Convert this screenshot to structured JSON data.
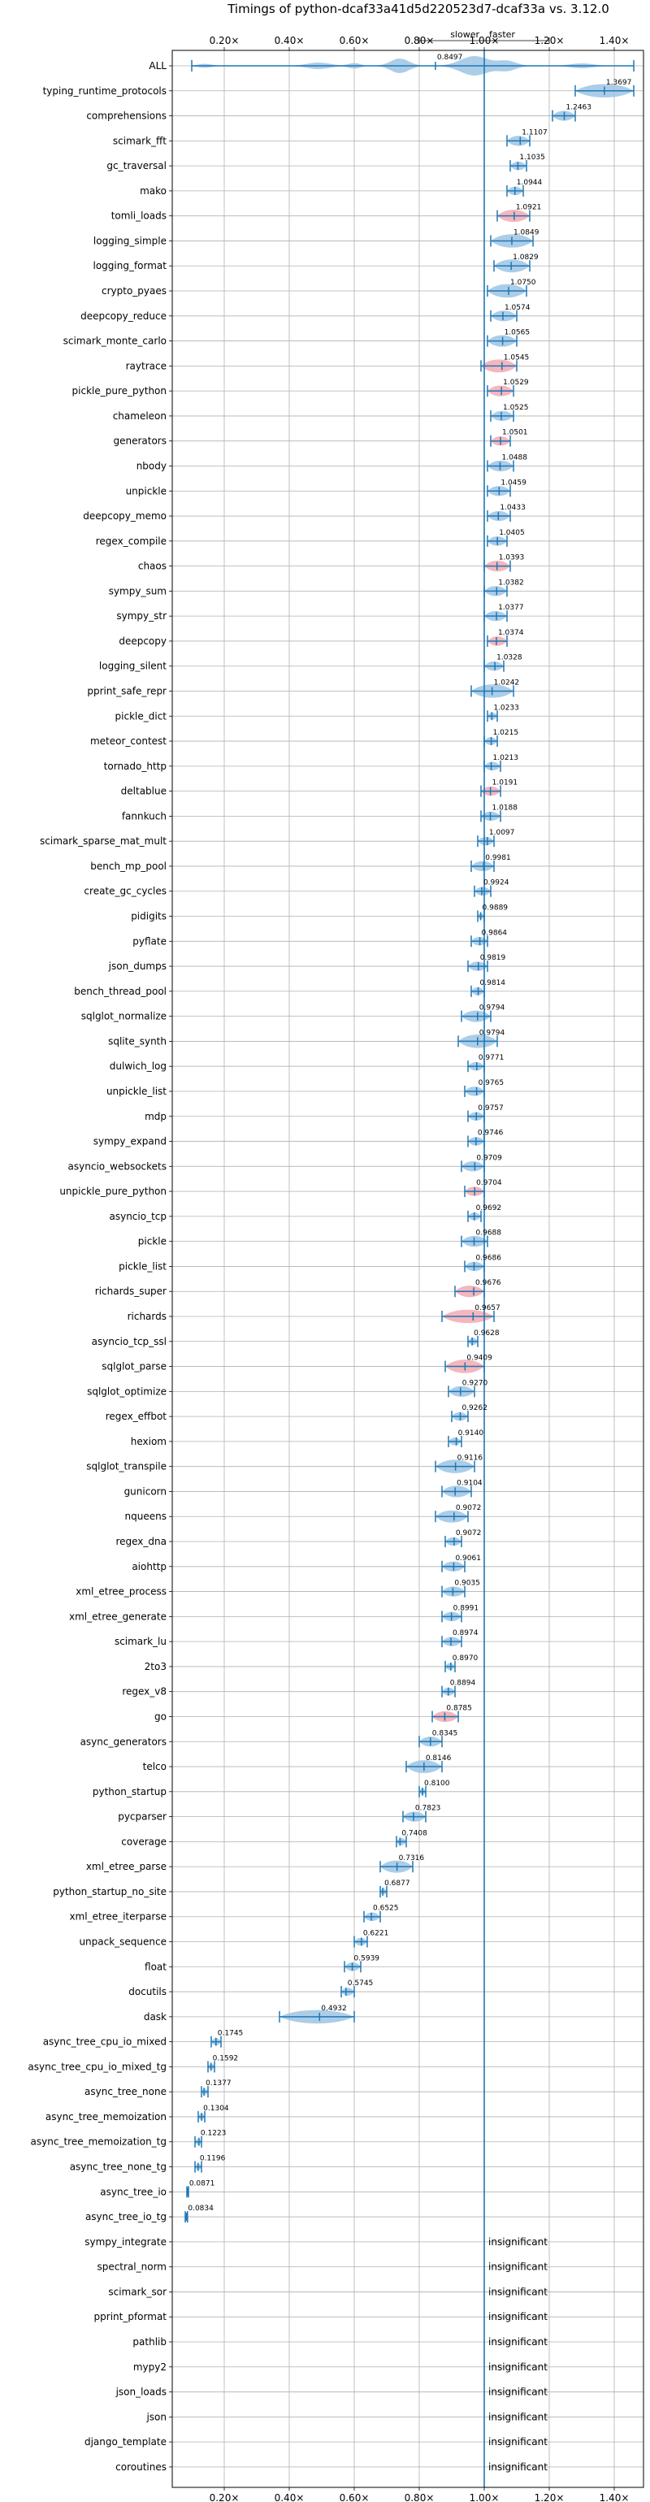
{
  "chart_data": {
    "type": "violin",
    "title": "Timings of python-dcaf33a41d5d220523d7-dcaf33a vs. 3.12.0",
    "slower_label": "slower",
    "faster_label": "faster",
    "x_range": [
      0.04,
      1.49
    ],
    "x_ticks": [
      0.2,
      0.4,
      0.6,
      0.8,
      1.0,
      1.2,
      1.4
    ],
    "x_tick_labels": [
      "0.20×",
      "0.40×",
      "0.60×",
      "0.80×",
      "1.00×",
      "1.20×",
      "1.40×"
    ],
    "reference_line": 1.0,
    "grid": true,
    "colors": {
      "violin_faster": "#9cc4e4",
      "violin_slower": "#f3a9b2",
      "line": "#1f77b4"
    },
    "insignificant_text": "insignificant",
    "benchmarks": [
      {
        "name": "ALL",
        "value": 0.8497,
        "lo": 0.1,
        "hi": 1.46,
        "label": "0.8497"
      },
      {
        "name": "typing_runtime_protocols",
        "value": 1.3697,
        "lo": 1.28,
        "hi": 1.46,
        "label": "1.3697"
      },
      {
        "name": "comprehensions",
        "value": 1.2463,
        "lo": 1.21,
        "hi": 1.28,
        "label": "1.2463"
      },
      {
        "name": "scimark_fft",
        "value": 1.1107,
        "lo": 1.07,
        "hi": 1.14,
        "label": "1.1107"
      },
      {
        "name": "gc_traversal",
        "value": 1.1035,
        "lo": 1.08,
        "hi": 1.13,
        "label": "1.1035"
      },
      {
        "name": "mako",
        "value": 1.0944,
        "lo": 1.07,
        "hi": 1.12,
        "label": "1.0944"
      },
      {
        "name": "tomli_loads",
        "value": 1.0921,
        "lo": 1.04,
        "hi": 1.14,
        "label": "1.0921",
        "slower": true
      },
      {
        "name": "logging_simple",
        "value": 1.0849,
        "lo": 1.02,
        "hi": 1.15,
        "label": "1.0849"
      },
      {
        "name": "logging_format",
        "value": 1.0829,
        "lo": 1.03,
        "hi": 1.14,
        "label": "1.0829"
      },
      {
        "name": "crypto_pyaes",
        "value": 1.075,
        "lo": 1.01,
        "hi": 1.13,
        "label": "1.0750"
      },
      {
        "name": "deepcopy_reduce",
        "value": 1.0574,
        "lo": 1.02,
        "hi": 1.1,
        "label": "1.0574"
      },
      {
        "name": "scimark_monte_carlo",
        "value": 1.0565,
        "lo": 1.01,
        "hi": 1.1,
        "label": "1.0565"
      },
      {
        "name": "raytrace",
        "value": 1.0545,
        "lo": 0.99,
        "hi": 1.1,
        "label": "1.0545",
        "slower": true
      },
      {
        "name": "pickle_pure_python",
        "value": 1.0529,
        "lo": 1.01,
        "hi": 1.09,
        "label": "1.0529",
        "slower": true
      },
      {
        "name": "chameleon",
        "value": 1.0525,
        "lo": 1.02,
        "hi": 1.09,
        "label": "1.0525"
      },
      {
        "name": "generators",
        "value": 1.0501,
        "lo": 1.02,
        "hi": 1.08,
        "label": "1.0501",
        "slower": true
      },
      {
        "name": "nbody",
        "value": 1.0488,
        "lo": 1.01,
        "hi": 1.09,
        "label": "1.0488"
      },
      {
        "name": "unpickle",
        "value": 1.0459,
        "lo": 1.01,
        "hi": 1.08,
        "label": "1.0459"
      },
      {
        "name": "deepcopy_memo",
        "value": 1.0433,
        "lo": 1.01,
        "hi": 1.08,
        "label": "1.0433"
      },
      {
        "name": "regex_compile",
        "value": 1.0405,
        "lo": 1.01,
        "hi": 1.07,
        "label": "1.0405"
      },
      {
        "name": "chaos",
        "value": 1.0393,
        "lo": 1.0,
        "hi": 1.08,
        "label": "1.0393",
        "slower": true
      },
      {
        "name": "sympy_sum",
        "value": 1.0382,
        "lo": 1.0,
        "hi": 1.07,
        "label": "1.0382"
      },
      {
        "name": "sympy_str",
        "value": 1.0377,
        "lo": 1.0,
        "hi": 1.07,
        "label": "1.0377"
      },
      {
        "name": "deepcopy",
        "value": 1.0374,
        "lo": 1.01,
        "hi": 1.07,
        "label": "1.0374",
        "slower": true
      },
      {
        "name": "logging_silent",
        "value": 1.0328,
        "lo": 1.0,
        "hi": 1.06,
        "label": "1.0328"
      },
      {
        "name": "pprint_safe_repr",
        "value": 1.0242,
        "lo": 0.96,
        "hi": 1.09,
        "label": "1.0242"
      },
      {
        "name": "pickle_dict",
        "value": 1.0233,
        "lo": 1.01,
        "hi": 1.04,
        "label": "1.0233"
      },
      {
        "name": "meteor_contest",
        "value": 1.0215,
        "lo": 1.0,
        "hi": 1.04,
        "label": "1.0215"
      },
      {
        "name": "tornado_http",
        "value": 1.0213,
        "lo": 1.0,
        "hi": 1.05,
        "label": "1.0213"
      },
      {
        "name": "deltablue",
        "value": 1.0191,
        "lo": 0.99,
        "hi": 1.05,
        "label": "1.0191",
        "slower": true
      },
      {
        "name": "fannkuch",
        "value": 1.0188,
        "lo": 0.99,
        "hi": 1.05,
        "label": "1.0188"
      },
      {
        "name": "scimark_sparse_mat_mult",
        "value": 1.0097,
        "lo": 0.98,
        "hi": 1.03,
        "label": "1.0097"
      },
      {
        "name": "bench_mp_pool",
        "value": 0.9981,
        "lo": 0.96,
        "hi": 1.03,
        "label": "0.9981"
      },
      {
        "name": "create_gc_cycles",
        "value": 0.9924,
        "lo": 0.97,
        "hi": 1.02,
        "label": "0.9924"
      },
      {
        "name": "pidigits",
        "value": 0.9889,
        "lo": 0.98,
        "hi": 1.0,
        "label": "0.9889"
      },
      {
        "name": "pyflate",
        "value": 0.9864,
        "lo": 0.96,
        "hi": 1.01,
        "label": "0.9864"
      },
      {
        "name": "json_dumps",
        "value": 0.9819,
        "lo": 0.95,
        "hi": 1.01,
        "label": "0.9819"
      },
      {
        "name": "bench_thread_pool",
        "value": 0.9814,
        "lo": 0.96,
        "hi": 1.0,
        "label": "0.9814"
      },
      {
        "name": "sqlglot_normalize",
        "value": 0.9794,
        "lo": 0.93,
        "hi": 1.02,
        "label": "0.9794"
      },
      {
        "name": "sqlite_synth",
        "value": 0.9794,
        "lo": 0.92,
        "hi": 1.04,
        "label": "0.9794"
      },
      {
        "name": "dulwich_log",
        "value": 0.9771,
        "lo": 0.95,
        "hi": 1.0,
        "label": "0.9771"
      },
      {
        "name": "unpickle_list",
        "value": 0.9765,
        "lo": 0.94,
        "hi": 1.0,
        "label": "0.9765"
      },
      {
        "name": "mdp",
        "value": 0.9757,
        "lo": 0.95,
        "hi": 1.0,
        "label": "0.9757"
      },
      {
        "name": "sympy_expand",
        "value": 0.9746,
        "lo": 0.95,
        "hi": 1.0,
        "label": "0.9746"
      },
      {
        "name": "asyncio_websockets",
        "value": 0.9709,
        "lo": 0.93,
        "hi": 1.0,
        "label": "0.9709"
      },
      {
        "name": "unpickle_pure_python",
        "value": 0.9704,
        "lo": 0.94,
        "hi": 1.0,
        "label": "0.9704",
        "slower": true
      },
      {
        "name": "asyncio_tcp",
        "value": 0.9692,
        "lo": 0.95,
        "hi": 0.99,
        "label": "0.9692"
      },
      {
        "name": "pickle",
        "value": 0.9688,
        "lo": 0.93,
        "hi": 1.01,
        "label": "0.9688"
      },
      {
        "name": "pickle_list",
        "value": 0.9686,
        "lo": 0.94,
        "hi": 1.0,
        "label": "0.9686"
      },
      {
        "name": "richards_super",
        "value": 0.9676,
        "lo": 0.91,
        "hi": 1.0,
        "label": "0.9676",
        "slower": true
      },
      {
        "name": "richards",
        "value": 0.9657,
        "lo": 0.87,
        "hi": 1.03,
        "label": "0.9657",
        "slower": true
      },
      {
        "name": "asyncio_tcp_ssl",
        "value": 0.9628,
        "lo": 0.95,
        "hi": 0.98,
        "label": "0.9628"
      },
      {
        "name": "sqlglot_parse",
        "value": 0.9409,
        "lo": 0.88,
        "hi": 1.0,
        "label": "0.9409",
        "slower": true
      },
      {
        "name": "sqlglot_optimize",
        "value": 0.927,
        "lo": 0.89,
        "hi": 0.97,
        "label": "0.9270"
      },
      {
        "name": "regex_effbot",
        "value": 0.9262,
        "lo": 0.9,
        "hi": 0.95,
        "label": "0.9262"
      },
      {
        "name": "hexiom",
        "value": 0.914,
        "lo": 0.89,
        "hi": 0.93,
        "label": "0.9140"
      },
      {
        "name": "sqlglot_transpile",
        "value": 0.9116,
        "lo": 0.85,
        "hi": 0.97,
        "label": "0.9116"
      },
      {
        "name": "gunicorn",
        "value": 0.9104,
        "lo": 0.87,
        "hi": 0.96,
        "label": "0.9104"
      },
      {
        "name": "nqueens",
        "value": 0.9072,
        "lo": 0.85,
        "hi": 0.95,
        "label": "0.9072"
      },
      {
        "name": "regex_dna",
        "value": 0.9072,
        "lo": 0.88,
        "hi": 0.93,
        "label": "0.9072"
      },
      {
        "name": "aiohttp",
        "value": 0.9061,
        "lo": 0.87,
        "hi": 0.94,
        "label": "0.9061"
      },
      {
        "name": "xml_etree_process",
        "value": 0.9035,
        "lo": 0.87,
        "hi": 0.94,
        "label": "0.9035"
      },
      {
        "name": "xml_etree_generate",
        "value": 0.8991,
        "lo": 0.87,
        "hi": 0.93,
        "label": "0.8991"
      },
      {
        "name": "scimark_lu",
        "value": 0.8974,
        "lo": 0.87,
        "hi": 0.93,
        "label": "0.8974"
      },
      {
        "name": "2to3",
        "value": 0.897,
        "lo": 0.88,
        "hi": 0.91,
        "label": "0.8970"
      },
      {
        "name": "regex_v8",
        "value": 0.8894,
        "lo": 0.87,
        "hi": 0.91,
        "label": "0.8894"
      },
      {
        "name": "go",
        "value": 0.8785,
        "lo": 0.84,
        "hi": 0.92,
        "label": "0.8785",
        "slower": true
      },
      {
        "name": "async_generators",
        "value": 0.8345,
        "lo": 0.8,
        "hi": 0.87,
        "label": "0.8345"
      },
      {
        "name": "telco",
        "value": 0.8146,
        "lo": 0.76,
        "hi": 0.87,
        "label": "0.8146"
      },
      {
        "name": "python_startup",
        "value": 0.81,
        "lo": 0.8,
        "hi": 0.82,
        "label": "0.8100"
      },
      {
        "name": "pycparser",
        "value": 0.7823,
        "lo": 0.75,
        "hi": 0.82,
        "label": "0.7823"
      },
      {
        "name": "coverage",
        "value": 0.7408,
        "lo": 0.73,
        "hi": 0.76,
        "label": "0.7408"
      },
      {
        "name": "xml_etree_parse",
        "value": 0.7316,
        "lo": 0.68,
        "hi": 0.78,
        "label": "0.7316"
      },
      {
        "name": "python_startup_no_site",
        "value": 0.6877,
        "lo": 0.68,
        "hi": 0.7,
        "label": "0.6877"
      },
      {
        "name": "xml_etree_iterparse",
        "value": 0.6525,
        "lo": 0.63,
        "hi": 0.68,
        "label": "0.6525"
      },
      {
        "name": "unpack_sequence",
        "value": 0.6221,
        "lo": 0.6,
        "hi": 0.64,
        "label": "0.6221"
      },
      {
        "name": "float",
        "value": 0.5939,
        "lo": 0.57,
        "hi": 0.62,
        "label": "0.5939"
      },
      {
        "name": "docutils",
        "value": 0.5745,
        "lo": 0.56,
        "hi": 0.6,
        "label": "0.5745"
      },
      {
        "name": "dask",
        "value": 0.4932,
        "lo": 0.37,
        "hi": 0.6,
        "label": "0.4932"
      },
      {
        "name": "async_tree_cpu_io_mixed",
        "value": 0.1745,
        "lo": 0.16,
        "hi": 0.19,
        "label": "0.1745"
      },
      {
        "name": "async_tree_cpu_io_mixed_tg",
        "value": 0.1592,
        "lo": 0.15,
        "hi": 0.17,
        "label": "0.1592"
      },
      {
        "name": "async_tree_none",
        "value": 0.1377,
        "lo": 0.13,
        "hi": 0.15,
        "label": "0.1377"
      },
      {
        "name": "async_tree_memoization",
        "value": 0.1304,
        "lo": 0.12,
        "hi": 0.14,
        "label": "0.1304"
      },
      {
        "name": "async_tree_memoization_tg",
        "value": 0.1223,
        "lo": 0.11,
        "hi": 0.13,
        "label": "0.1223"
      },
      {
        "name": "async_tree_none_tg",
        "value": 0.1196,
        "lo": 0.11,
        "hi": 0.13,
        "label": "0.1196"
      },
      {
        "name": "async_tree_io",
        "value": 0.0871,
        "lo": 0.085,
        "hi": 0.09,
        "label": "0.0871"
      },
      {
        "name": "async_tree_io_tg",
        "value": 0.0834,
        "lo": 0.08,
        "hi": 0.087,
        "label": "0.0834"
      },
      {
        "name": "sympy_integrate",
        "insignificant": true
      },
      {
        "name": "spectral_norm",
        "insignificant": true
      },
      {
        "name": "scimark_sor",
        "insignificant": true
      },
      {
        "name": "pprint_pformat",
        "insignificant": true
      },
      {
        "name": "pathlib",
        "insignificant": true
      },
      {
        "name": "mypy2",
        "insignificant": true
      },
      {
        "name": "json_loads",
        "insignificant": true
      },
      {
        "name": "json",
        "insignificant": true
      },
      {
        "name": "django_template",
        "insignificant": true
      },
      {
        "name": "coroutines",
        "insignificant": true
      }
    ]
  }
}
